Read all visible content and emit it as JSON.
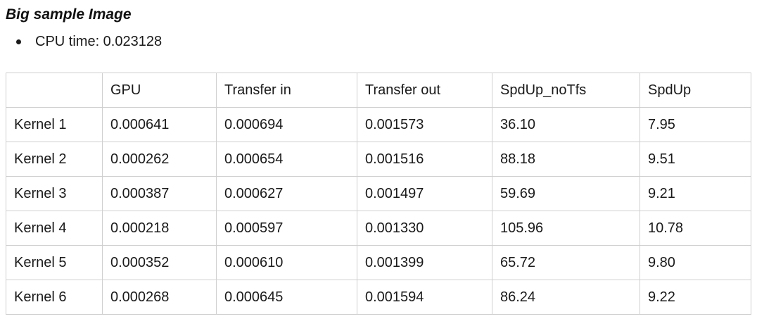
{
  "heading": "Big sample Image",
  "bullets": [
    "CPU time: 0.023128"
  ],
  "table": {
    "headers": [
      "",
      "GPU",
      "Transfer in",
      "Transfer out",
      "SpdUp_noTfs",
      "SpdUp"
    ],
    "rows": [
      [
        "Kernel 1",
        "0.000641",
        "0.000694",
        "0.001573",
        "36.10",
        "7.95"
      ],
      [
        "Kernel 2",
        "0.000262",
        "0.000654",
        "0.001516",
        "88.18",
        "9.51"
      ],
      [
        "Kernel 3",
        "0.000387",
        "0.000627",
        "0.001497",
        "59.69",
        "9.21"
      ],
      [
        "Kernel 4",
        "0.000218",
        "0.000597",
        "0.001330",
        "105.96",
        "10.78"
      ],
      [
        "Kernel 5",
        "0.000352",
        "0.000610",
        "0.001399",
        "65.72",
        "9.80"
      ],
      [
        "Kernel 6",
        "0.000268",
        "0.000645",
        "0.001594",
        "86.24",
        "9.22"
      ]
    ]
  }
}
